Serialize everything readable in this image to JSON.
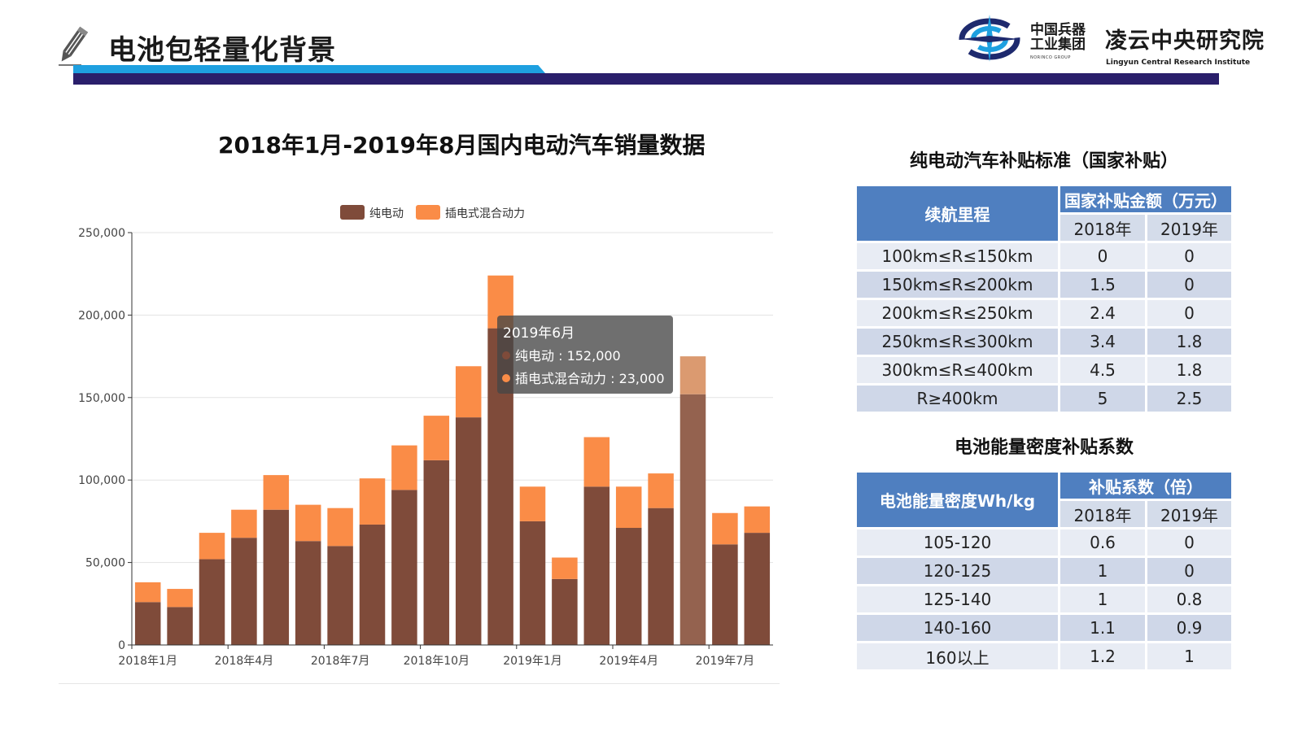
{
  "header": {
    "title": "电池包轻量化背景",
    "logo_cn_group_line1": "中国兵器",
    "logo_cn_group_line2": "工业集团",
    "logo_en_group": "NORINCO GROUP",
    "logo_cn_institute": "凌云中央研究院",
    "logo_en_institute": "Lingyun Central Research Institute"
  },
  "chart_title": "2018年1月-2019年8月国内电动汽车销量数据",
  "chart_data": {
    "type": "bar",
    "stacked": true,
    "categories": [
      "2018年1月",
      "2018年2月",
      "2018年3月",
      "2018年4月",
      "2018年5月",
      "2018年6月",
      "2018年7月",
      "2018年8月",
      "2018年9月",
      "2018年10月",
      "2018年11月",
      "2018年12月",
      "2019年1月",
      "2019年2月",
      "2019年3月",
      "2019年4月",
      "2019年5月",
      "2019年6月",
      "2019年7月",
      "2019年8月"
    ],
    "tick_labels": [
      "2018年1月",
      "2018年4月",
      "2018年7月",
      "2018年10月",
      "2019年1月",
      "2019年4月",
      "2019年7月"
    ],
    "y_tick_labels": [
      "0",
      "50,000",
      "100,000",
      "150,000",
      "200,000",
      "250,000"
    ],
    "ylim": [
      0,
      250000
    ],
    "grid": true,
    "legend": "top-center",
    "series": [
      {
        "name": "纯电动",
        "color": "#7f4b3a",
        "values": [
          26000,
          23000,
          52000,
          65000,
          82000,
          63000,
          60000,
          73000,
          94000,
          112000,
          138000,
          192000,
          75000,
          40000,
          96000,
          71000,
          83000,
          152000,
          61000,
          68000
        ]
      },
      {
        "name": "插电式混合动力",
        "color": "#fa8c47",
        "values": [
          12000,
          11000,
          16000,
          17000,
          21000,
          22000,
          23000,
          28000,
          27000,
          27000,
          31000,
          32000,
          21000,
          13000,
          30000,
          25000,
          21000,
          23000,
          19000,
          16000
        ]
      }
    ],
    "highlight_index": 17,
    "tooltip": {
      "title": "2019年6月",
      "line1": "纯电动 : 152,000",
      "line2": "插电式混合动力 : 23,000"
    }
  },
  "subsidy_table": {
    "title": "纯电动汽车补贴标准（国家补贴）",
    "header_col1": "续航里程",
    "header_group": "国家补贴金额（万元）",
    "year1": "2018年",
    "year2": "2019年",
    "rows": [
      [
        "100km≤R≤150km",
        "0",
        "0"
      ],
      [
        "150km≤R≤200km",
        "1.5",
        "0"
      ],
      [
        "200km≤R≤250km",
        "2.4",
        "0"
      ],
      [
        "250km≤R≤300km",
        "3.4",
        "1.8"
      ],
      [
        "300km≤R≤400km",
        "4.5",
        "1.8"
      ],
      [
        "R≥400km",
        "5",
        "2.5"
      ]
    ]
  },
  "density_table": {
    "title": "电池能量密度补贴系数",
    "header_col1": "电池能量密度Wh/kg",
    "header_group": "补贴系数（倍）",
    "year1": "2018年",
    "year2": "2019年",
    "rows": [
      [
        "105-120",
        "0.6",
        "0"
      ],
      [
        "120-125",
        "1",
        "0"
      ],
      [
        "125-140",
        "1",
        "0.8"
      ],
      [
        "140-160",
        "1.1",
        "0.9"
      ],
      [
        "160以上",
        "1.2",
        "1"
      ]
    ]
  }
}
